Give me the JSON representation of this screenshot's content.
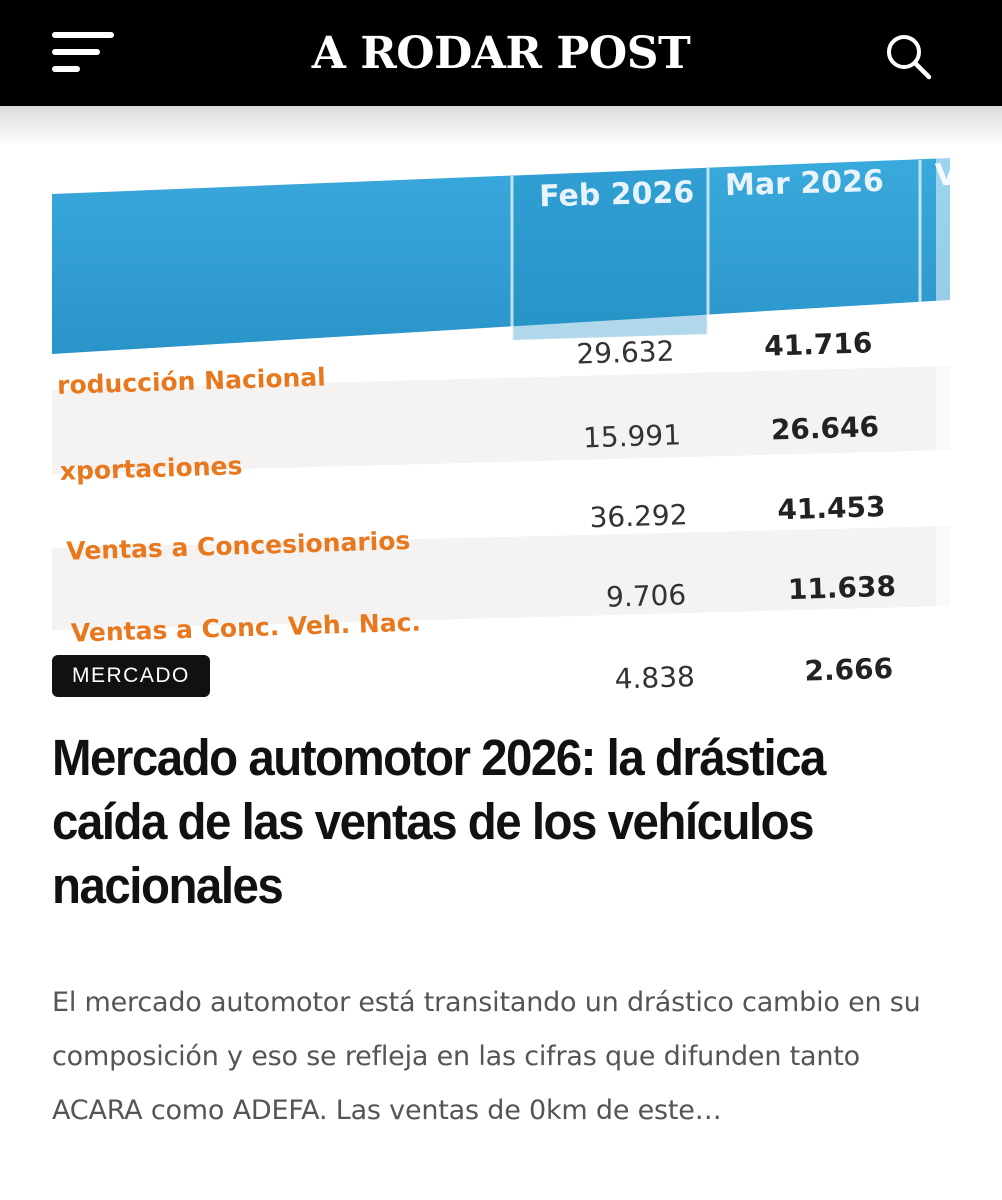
{
  "header": {
    "site_title": "A RODAR POST",
    "menu_icon": "hamburger-menu-icon",
    "search_icon": "search-icon",
    "background": "#000000"
  },
  "hero_table": {
    "columns": [
      "Feb 2026",
      "Mar 2026"
    ],
    "rows": [
      {
        "label": "roducción Nacional",
        "feb": "29.632",
        "mar": "41.716"
      },
      {
        "label": "xportaciones",
        "feb": "15.991",
        "mar": "26.646"
      },
      {
        "label": "Ventas a Concesionarios",
        "feb": "36.292",
        "mar": "41.453"
      },
      {
        "label": "Ventas a Conc. Veh. Nac.",
        "feb": "9.706",
        "mar": "11.638"
      },
      {
        "label": "",
        "feb": "4.838",
        "mar": "2.666"
      }
    ],
    "header_color": "#2a9fd2",
    "label_color": "#e8781e"
  },
  "article": {
    "category": "MERCADO",
    "headline": "Mercado automotor 2026: la drástica caída de las ventas de los vehículos nacionales",
    "excerpt": "El mercado automotor está transitando un drástico cambio en su composición y eso se refleja en las cifras que difunden tanto ACARA como ADEFA. Las ventas de 0km de este…"
  }
}
